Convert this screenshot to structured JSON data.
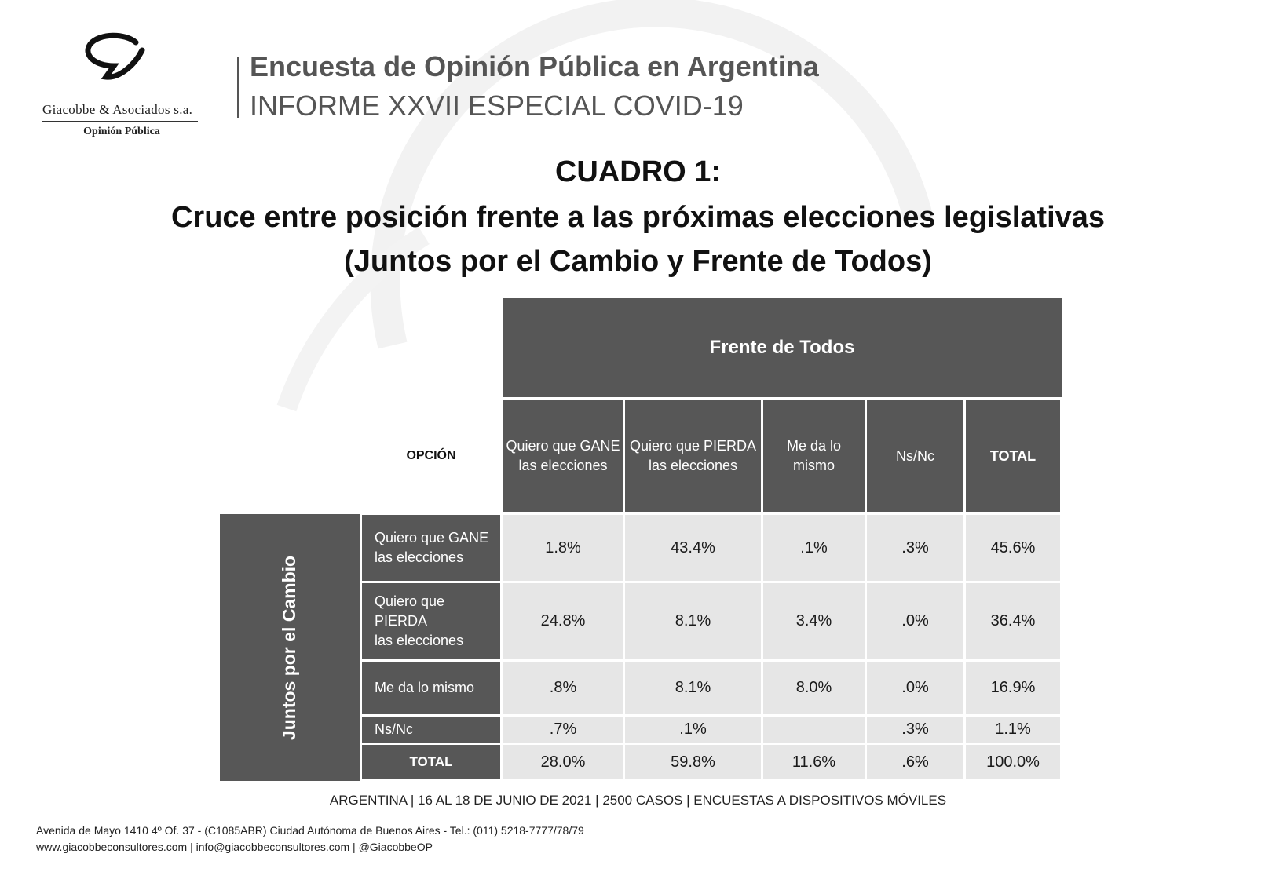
{
  "header": {
    "company": "Giacobbe & Asociados s.a.",
    "company_sub": "Opinión Pública",
    "title": "Encuesta de Opinión Pública en Argentina",
    "subtitle": "INFORME XXVII ESPECIAL COVID-19"
  },
  "cuadro": {
    "label": "CUADRO 1:",
    "line2": "Cruce entre posición frente a las próximas elecciones legislativas",
    "line3": "(Juntos por el Cambio y Frente de Todos)"
  },
  "table": {
    "col_group": "Frente de Todos",
    "row_group": "Juntos por el Cambio",
    "corner_label": "OPCIÓN",
    "columns": [
      [
        "Quiero que GANE",
        "las elecciones"
      ],
      [
        "Quiero que PIERDA",
        "las elecciones"
      ],
      [
        "Me da lo",
        "mismo"
      ],
      [
        "Ns/Nc"
      ],
      [
        "TOTAL"
      ]
    ],
    "rows": [
      {
        "label": [
          "Quiero que GANE",
          "las elecciones"
        ],
        "values": [
          "1.8%",
          "43.4%",
          ".1%",
          ".3%",
          "45.6%"
        ]
      },
      {
        "label": [
          "Quiero que PIERDA",
          "las elecciones"
        ],
        "values": [
          "24.8%",
          "8.1%",
          "3.4%",
          ".0%",
          "36.4%"
        ]
      },
      {
        "label": [
          "Me da lo mismo"
        ],
        "values": [
          ".8%",
          "8.1%",
          "8.0%",
          ".0%",
          "16.9%"
        ]
      },
      {
        "label": [
          "Ns/Nc"
        ],
        "values": [
          ".7%",
          ".1%",
          "",
          ".3%",
          "1.1%"
        ]
      },
      {
        "label": [
          "TOTAL"
        ],
        "values": [
          "28.0%",
          "59.8%",
          "11.6%",
          ".6%",
          "100.0%"
        ]
      }
    ]
  },
  "footer": {
    "note": "ARGENTINA | 16 AL 18 DE JUNIO DE 2021 | 2500 CASOS | ENCUESTAS A DISPOSITIVOS MÓVILES",
    "address": "Avenida de Mayo 1410 4º Of. 37 - (C1085ABR) Ciudad Autónoma de Buenos Aires - Tel.: (011) 5218-7777/78/79",
    "contact": "www.giacobbeconsultores.com | info@giacobbeconsultores.com | @GiacobbeOP"
  }
}
